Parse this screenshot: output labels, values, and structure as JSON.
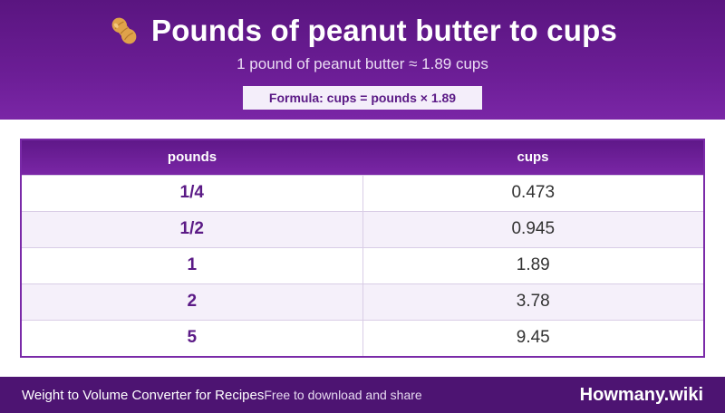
{
  "header": {
    "icon": "peanut-icon",
    "title": "Pounds of peanut butter to cups",
    "subtitle": "1 pound of peanut butter ≈ 1.89 cups",
    "formula": "Formula: cups = pounds × 1.89"
  },
  "table": {
    "columns": [
      "pounds",
      "cups"
    ],
    "rows": [
      {
        "pounds": "1/4",
        "cups": "0.473"
      },
      {
        "pounds": "1/2",
        "cups": "0.945"
      },
      {
        "pounds": "1",
        "cups": "1.89"
      },
      {
        "pounds": "2",
        "cups": "3.78"
      },
      {
        "pounds": "5",
        "cups": "9.45"
      }
    ]
  },
  "footer": {
    "left": "Weight to Volume Converter for Recipes",
    "middle": "Free to download and share",
    "brand": "Howmany.wiki"
  },
  "colors": {
    "header": "#6b1d95",
    "accent": "#5b1a86",
    "footer": "#4d1472",
    "row_alt": "#f5f0fa"
  }
}
